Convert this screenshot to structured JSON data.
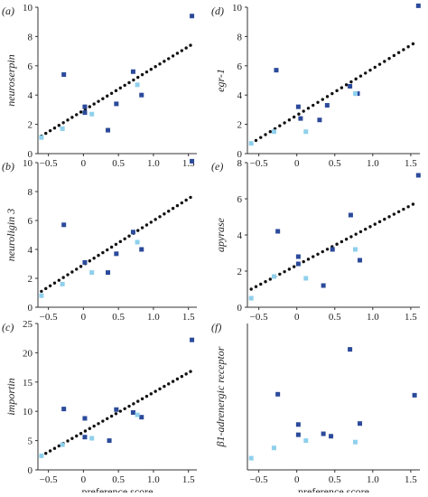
{
  "colors": {
    "dark_point": "#2b4a9a",
    "light_point": "#8fd0ec",
    "regression": "#111111",
    "axis": "#333333"
  },
  "x_axis": {
    "label": "preference score",
    "ticks": [
      -0.5,
      0,
      0.5,
      1.0,
      1.5
    ],
    "tick_labels": [
      "−0.5",
      "0",
      "0.5",
      "1.0",
      "1.5"
    ],
    "range": [
      -0.65,
      1.62
    ]
  },
  "chart_data": [
    {
      "type": "scatter",
      "panel": "(a)",
      "ylabel": "neuroserpin",
      "xlabel": "",
      "ylim": [
        0,
        10
      ],
      "yticks": [
        0,
        2,
        4,
        6,
        8,
        10
      ],
      "regression_line": {
        "x": [
          -0.6,
          1.53
        ],
        "y": [
          1.2,
          7.4
        ]
      },
      "series": [
        {
          "color": "dark",
          "x": [
            -0.28,
            0.02,
            0.02,
            0.35,
            0.47,
            0.71,
            0.83,
            1.55
          ],
          "y": [
            5.4,
            3.2,
            2.8,
            1.6,
            3.4,
            5.6,
            4.0,
            9.4
          ]
        },
        {
          "color": "light",
          "x": [
            -0.6,
            -0.3,
            0.12,
            0.77
          ],
          "y": [
            1.1,
            1.7,
            2.7,
            4.7
          ]
        }
      ]
    },
    {
      "type": "scatter",
      "panel": "(d)",
      "ylabel": "egr-1",
      "xlabel": "",
      "ylim": [
        0,
        10
      ],
      "yticks": [
        0,
        2,
        4,
        6,
        8,
        10
      ],
      "regression_line": {
        "x": [
          -0.6,
          1.53
        ],
        "y": [
          0.7,
          7.5
        ]
      },
      "series": [
        {
          "color": "dark",
          "x": [
            -0.27,
            0.02,
            0.05,
            0.3,
            0.4,
            0.7,
            0.8,
            1.6
          ],
          "y": [
            5.7,
            3.2,
            2.4,
            2.3,
            3.3,
            4.6,
            4.1,
            10.1
          ]
        },
        {
          "color": "light",
          "x": [
            -0.6,
            -0.3,
            0.12,
            0.77
          ],
          "y": [
            0.7,
            1.5,
            1.5,
            4.1
          ]
        }
      ]
    },
    {
      "type": "scatter",
      "panel": "(b)",
      "ylabel": "neuroligin 3",
      "xlabel": "",
      "ylim": [
        0,
        10
      ],
      "yticks": [
        0,
        2,
        4,
        6,
        8,
        10
      ],
      "regression_line": {
        "x": [
          -0.6,
          1.53
        ],
        "y": [
          1.1,
          7.6
        ]
      },
      "series": [
        {
          "color": "dark",
          "x": [
            -0.28,
            0.02,
            0.35,
            0.47,
            0.71,
            0.83,
            1.55
          ],
          "y": [
            5.7,
            3.1,
            2.4,
            3.7,
            5.2,
            4.0,
            10.1
          ]
        },
        {
          "color": "light",
          "x": [
            -0.6,
            -0.3,
            0.12,
            0.77
          ],
          "y": [
            0.8,
            1.6,
            2.4,
            4.5
          ]
        }
      ]
    },
    {
      "type": "scatter",
      "panel": "(e)",
      "ylabel": "apyrase",
      "xlabel": "",
      "ylim": [
        0,
        8
      ],
      "yticks": [
        0,
        2,
        4,
        6,
        8
      ],
      "regression_line": {
        "x": [
          -0.6,
          1.53
        ],
        "y": [
          1.0,
          5.7
        ]
      },
      "series": [
        {
          "color": "dark",
          "x": [
            -0.25,
            0.02,
            0.02,
            0.35,
            0.47,
            0.71,
            0.83,
            1.6
          ],
          "y": [
            4.2,
            2.8,
            2.4,
            1.2,
            3.2,
            5.1,
            2.6,
            7.3
          ]
        },
        {
          "color": "light",
          "x": [
            -0.6,
            -0.3,
            0.12,
            0.77
          ],
          "y": [
            0.5,
            1.7,
            1.6,
            3.2
          ]
        }
      ]
    },
    {
      "type": "scatter",
      "panel": "(c)",
      "ylabel": "importin",
      "xlabel": "preference score",
      "ylim": [
        0,
        25
      ],
      "yticks": [
        0,
        5,
        10,
        15,
        20,
        25
      ],
      "regression_line": {
        "x": [
          -0.6,
          1.53
        ],
        "y": [
          2.4,
          16.8
        ]
      },
      "series": [
        {
          "color": "dark",
          "x": [
            -0.28,
            0.02,
            0.02,
            0.37,
            0.47,
            0.71,
            0.83,
            1.55
          ],
          "y": [
            10.4,
            8.8,
            5.6,
            5.0,
            10.3,
            9.8,
            9.0,
            22.2
          ]
        },
        {
          "color": "light",
          "x": [
            -0.6,
            -0.3,
            0.12,
            0.77
          ],
          "y": [
            2.4,
            4.3,
            5.4,
            9.4
          ]
        }
      ]
    },
    {
      "type": "scatter",
      "panel": "(f)",
      "ylabel": "β1-adrenergic receptor",
      "xlabel": "preference score",
      "ylim": [
        0,
        3
      ],
      "yticks": [],
      "regression_line": null,
      "series": [
        {
          "color": "dark",
          "x": [
            -0.25,
            0.02,
            0.02,
            0.35,
            0.45,
            0.7,
            0.83,
            1.55
          ],
          "y": [
            1.55,
            0.93,
            0.72,
            0.74,
            0.69,
            2.47,
            0.95,
            1.53
          ]
        },
        {
          "color": "light",
          "x": [
            -0.6,
            -0.3,
            0.12,
            0.77
          ],
          "y": [
            0.24,
            0.45,
            0.6,
            0.57
          ]
        }
      ]
    }
  ]
}
